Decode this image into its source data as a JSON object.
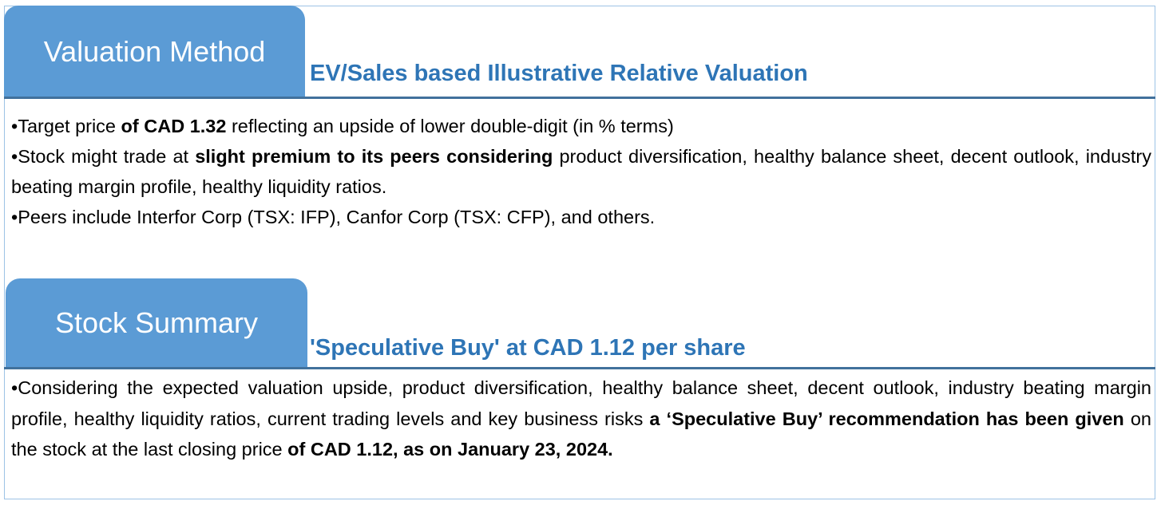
{
  "valuation": {
    "tab_label": "Valuation Method",
    "subtitle": "EV/Sales based Illustrative Relative Valuation",
    "bullets": [
      [
        {
          "t": "•Target price "
        },
        {
          "t": "of CAD 1.32",
          "b": true
        },
        {
          "t": " reflecting an upside of lower double-digit (in % terms)"
        }
      ],
      [
        {
          "t": "•Stock might trade at "
        },
        {
          "t": "slight premium to its peers considering",
          "b": true
        },
        {
          "t": " product diversification, healthy balance sheet, decent outlook, industry beating margin profile, healthy liquidity ratios."
        }
      ],
      [
        {
          "t": "•Peers include Interfor Corp (TSX: IFP), Canfor Corp (TSX: CFP), and others."
        }
      ]
    ]
  },
  "summary": {
    "tab_label": "Stock Summary",
    "subtitle": "'Speculative Buy' at CAD 1.12 per share",
    "bullets": [
      [
        {
          "t": "•Considering the expected valuation upside, product diversification, healthy balance sheet, decent outlook, industry beating margin profile, healthy liquidity ratios, current trading levels and key business risks "
        },
        {
          "t": "a ‘Speculative Buy’ recommendation has been given",
          "b": true
        },
        {
          "t": " on the stock at the last closing price "
        },
        {
          "t": "of CAD 1.12, as on January 23, 2024.",
          "b": true
        }
      ]
    ]
  },
  "colors": {
    "tab": "#5B9BD5",
    "subtitle": "#2E75B6",
    "rule": "#41719C"
  }
}
